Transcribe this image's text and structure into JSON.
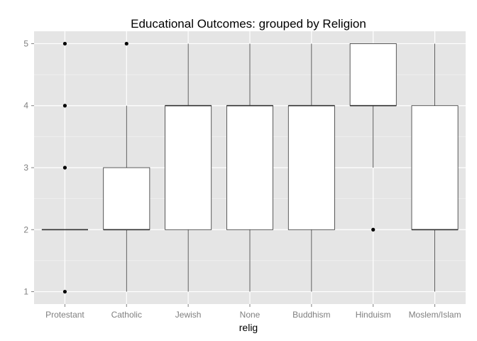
{
  "chart_data": {
    "type": "boxplot",
    "title": "Educational Outcomes: grouped by Religion",
    "xlabel": "relig",
    "ylabel": "",
    "categories": [
      "Protestant",
      "Catholic",
      "Jewish",
      "None",
      "Buddhism",
      "Hinduism",
      "Moslem/Islam"
    ],
    "ylim": [
      0.8,
      5.2
    ],
    "yticks": [
      1,
      2,
      3,
      4,
      5
    ],
    "grid": true,
    "legend": "none",
    "boxes": [
      {
        "category": "Protestant",
        "whisker_low": 2,
        "q1": 2,
        "median": 2,
        "q3": 2,
        "whisker_high": 2,
        "outliers": [
          1,
          3,
          4,
          5
        ]
      },
      {
        "category": "Catholic",
        "whisker_low": 1,
        "q1": 2,
        "median": 2,
        "q3": 3,
        "whisker_high": 4,
        "outliers": [
          5
        ]
      },
      {
        "category": "Jewish",
        "whisker_low": 1,
        "q1": 2,
        "median": 4,
        "q3": 4,
        "whisker_high": 5,
        "outliers": []
      },
      {
        "category": "None",
        "whisker_low": 1,
        "q1": 2,
        "median": 4,
        "q3": 4,
        "whisker_high": 5,
        "outliers": []
      },
      {
        "category": "Buddhism",
        "whisker_low": 1,
        "q1": 2,
        "median": 4,
        "q3": 4,
        "whisker_high": 5,
        "outliers": []
      },
      {
        "category": "Hinduism",
        "whisker_low": 3,
        "q1": 4,
        "median": 4,
        "q3": 5,
        "whisker_high": 5,
        "outliers": [
          2
        ]
      },
      {
        "category": "Moslem/Islam",
        "whisker_low": 1,
        "q1": 2,
        "median": 2,
        "q3": 4,
        "whisker_high": 5,
        "outliers": []
      }
    ],
    "colors": {
      "panel_background": "#e5e5e5",
      "grid_major": "#ffffff",
      "grid_minor": "#f2f2f2",
      "box_fill": "#ffffff",
      "box_stroke": "#333333",
      "outlier": "#000000",
      "tick_text": "#7f7f7f"
    }
  }
}
